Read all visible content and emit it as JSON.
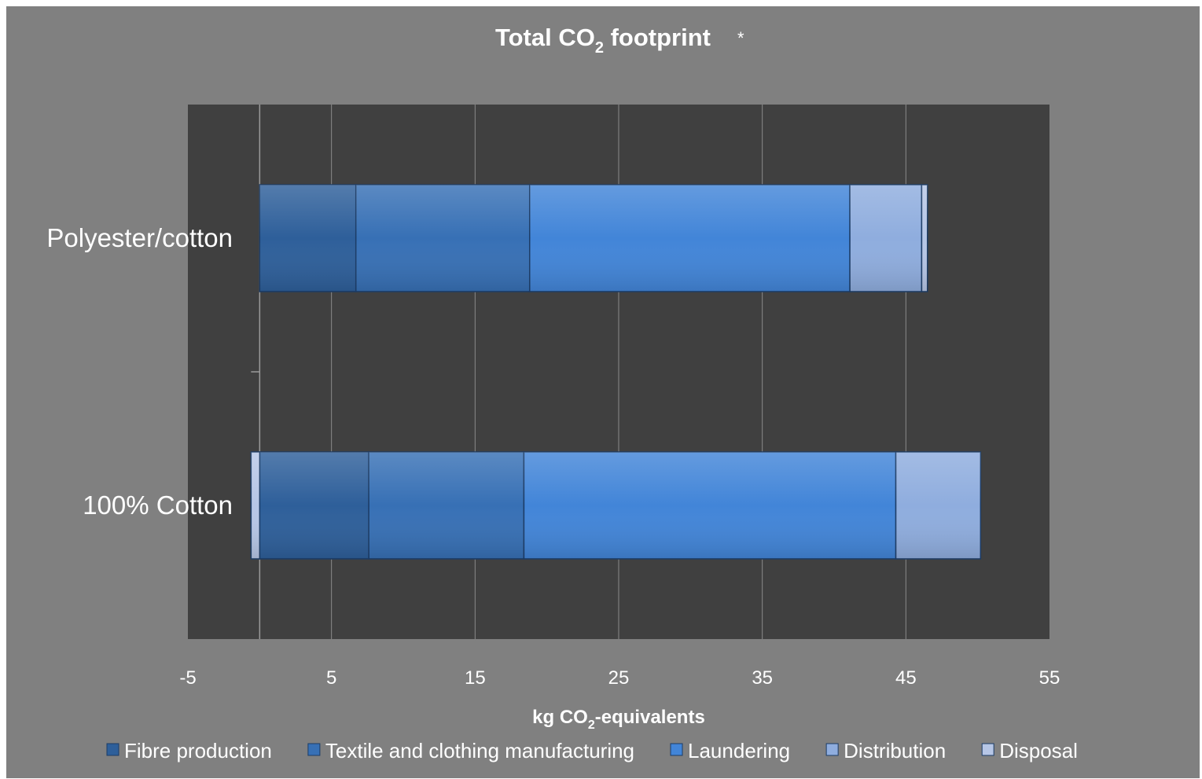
{
  "chart_data": {
    "type": "bar",
    "orientation": "horizontal",
    "stacked": true,
    "title": {
      "main": "Total CO",
      "subscript": "2",
      "rest": " footprint",
      "asterisk": "*"
    },
    "xlabel": {
      "main": "kg CO",
      "subscript": "2",
      "rest": "-equivalents"
    },
    "ylabel": "",
    "categories": [
      "Polyester/cotton",
      "100% Cotton"
    ],
    "xlim": [
      -5,
      55
    ],
    "xticks": [
      -5,
      5,
      15,
      25,
      35,
      45,
      55
    ],
    "grid": true,
    "legend_position": "bottom",
    "series": [
      {
        "name": "Fibre production",
        "values": [
          6.7,
          7.6
        ],
        "color": "#2e5f9a"
      },
      {
        "name": "Textile and clothing manufacturing",
        "values": [
          12.1,
          10.8
        ],
        "color": "#3770b5"
      },
      {
        "name": "Laundering",
        "values": [
          22.3,
          25.9
        ],
        "color": "#4285d8"
      },
      {
        "name": "Distribution",
        "values": [
          5.0,
          5.9
        ],
        "color": "#8fadde"
      },
      {
        "name": "Disposal",
        "values": [
          0.4,
          -0.6
        ],
        "color": "#b6c6e6"
      }
    ]
  }
}
